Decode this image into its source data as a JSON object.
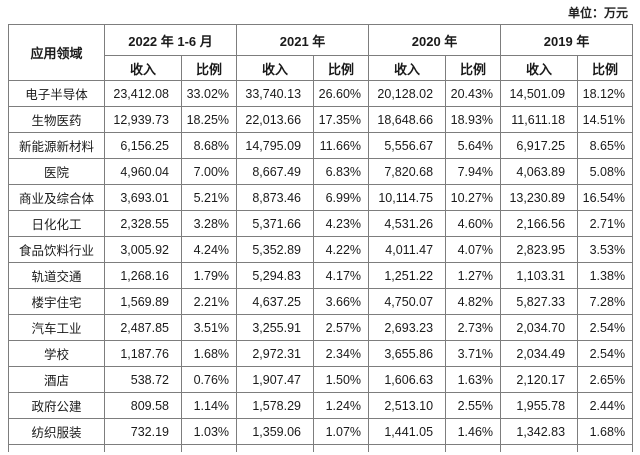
{
  "unit_label": "单位：万元",
  "table": {
    "corner_header": "应用领域",
    "year_groups": [
      "2022 年 1-6 月",
      "2021 年",
      "2020 年",
      "2019 年"
    ],
    "sub_headers": {
      "income": "收入",
      "ratio": "比例"
    },
    "rows": [
      {
        "label": "电子半导体",
        "values": [
          "23,412.08",
          "33.02%",
          "33,740.13",
          "26.60%",
          "20,128.02",
          "20.43%",
          "14,501.09",
          "18.12%"
        ]
      },
      {
        "label": "生物医药",
        "values": [
          "12,939.73",
          "18.25%",
          "22,013.66",
          "17.35%",
          "18,648.66",
          "18.93%",
          "11,611.18",
          "14.51%"
        ]
      },
      {
        "label": "新能源新材料",
        "values": [
          "6,156.25",
          "8.68%",
          "14,795.09",
          "11.66%",
          "5,556.67",
          "5.64%",
          "6,917.25",
          "8.65%"
        ]
      },
      {
        "label": "医院",
        "values": [
          "4,960.04",
          "7.00%",
          "8,667.49",
          "6.83%",
          "7,820.68",
          "7.94%",
          "4,063.89",
          "5.08%"
        ]
      },
      {
        "label": "商业及综合体",
        "values": [
          "3,693.01",
          "5.21%",
          "8,873.46",
          "6.99%",
          "10,114.75",
          "10.27%",
          "13,230.89",
          "16.54%"
        ]
      },
      {
        "label": "日化化工",
        "values": [
          "2,328.55",
          "3.28%",
          "5,371.66",
          "4.23%",
          "4,531.26",
          "4.60%",
          "2,166.56",
          "2.71%"
        ]
      },
      {
        "label": "食品饮料行业",
        "values": [
          "3,005.92",
          "4.24%",
          "5,352.89",
          "4.22%",
          "4,011.47",
          "4.07%",
          "2,823.95",
          "3.53%"
        ]
      },
      {
        "label": "轨道交通",
        "values": [
          "1,268.16",
          "1.79%",
          "5,294.83",
          "4.17%",
          "1,251.22",
          "1.27%",
          "1,103.31",
          "1.38%"
        ]
      },
      {
        "label": "楼宇住宅",
        "values": [
          "1,569.89",
          "2.21%",
          "4,637.25",
          "3.66%",
          "4,750.07",
          "4.82%",
          "5,827.33",
          "7.28%"
        ]
      },
      {
        "label": "汽车工业",
        "values": [
          "2,487.85",
          "3.51%",
          "3,255.91",
          "2.57%",
          "2,693.23",
          "2.73%",
          "2,034.70",
          "2.54%"
        ]
      },
      {
        "label": "学校",
        "values": [
          "1,187.76",
          "1.68%",
          "2,972.31",
          "2.34%",
          "3,655.86",
          "3.71%",
          "2,034.49",
          "2.54%"
        ]
      },
      {
        "label": "酒店",
        "values": [
          "538.72",
          "0.76%",
          "1,907.47",
          "1.50%",
          "1,606.63",
          "1.63%",
          "2,120.17",
          "2.65%"
        ]
      },
      {
        "label": "政府公建",
        "values": [
          "809.58",
          "1.14%",
          "1,578.29",
          "1.24%",
          "2,513.10",
          "2.55%",
          "1,955.78",
          "2.44%"
        ]
      },
      {
        "label": "纺织服装",
        "values": [
          "732.19",
          "1.03%",
          "1,359.06",
          "1.07%",
          "1,441.05",
          "1.46%",
          "1,342.83",
          "1.68%"
        ]
      }
    ]
  }
}
